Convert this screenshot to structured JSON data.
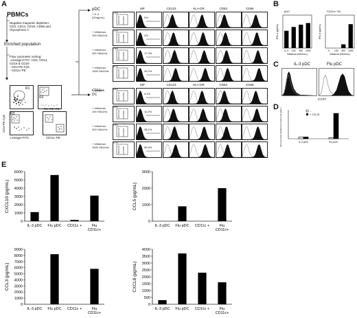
{
  "panel_labels": {
    "a": "A",
    "b": "B",
    "c": "C",
    "d": "D",
    "e": "E"
  },
  "panel_a": {
    "pbmcs": "PBMCs",
    "depletion_lines": [
      "Negative magnetic depletion:",
      "CD3, CD14, CD19, CD56 and",
      "Glycophorin A"
    ],
    "enriched": "Enriched population",
    "sorting_lines": [
      "Flow cytometer sorting:",
      "-Lineage-FITC: CD3, CD14,",
      "CD16 & CD20",
      "- CD4-PE-Cy5",
      "- CD11c-PE"
    ],
    "gates": {
      "r1": "R1",
      "r2": "R2",
      "r3": "R3",
      "r1r2r3": "R1+R2+R3"
    },
    "axis_labels": {
      "cd4": "CD4-PE-Cy5",
      "lineage": "Lineage-FITC",
      "cd11c": "CD11c-PE"
    },
    "pdc_label": "pDC",
    "cd11c_label": "CD11c+ DC",
    "col_headers": [
      "MP",
      "CD123",
      "HLA-DR",
      "CD83",
      "CD86"
    ],
    "pdc_rows": [
      {
        "cond": [
          "+ IL-3",
          "(20ng/mL)"
        ],
        "viab": "72%",
        "mp": "0%"
      },
      {
        "cond": [
          "+ Influenza",
          "100 HAU/mL"
        ],
        "viab": "71%",
        "mp": "4%"
      },
      {
        "cond": [
          "+ Influenza",
          "400 HAU/mL"
        ],
        "viab": "70%",
        "mp": "17.3%"
      },
      {
        "cond": [
          "+ Influenza",
          "1000 HAU/mL"
        ],
        "viab": "67%",
        "mp": "26.2%"
      }
    ],
    "dc_rows": [
      {
        "cond": [
          "+ medium"
        ],
        "viab": "45%",
        "mp": "0.1%"
      },
      {
        "cond": [
          "+ Influenza",
          "100 HAU/mL"
        ],
        "viab": "39%",
        "mp": "11.2%"
      },
      {
        "cond": [
          "+ Influenza",
          "400 HAU/mL"
        ],
        "viab": "18%",
        "mp": "38.1%"
      },
      {
        "cond": [
          "+ Influenza",
          "1000 HAU/mL"
        ],
        "viab": "17%",
        "mp": "55.9%"
      }
    ]
  },
  "panel_c": {
    "left": "IL-3 pDC",
    "right": "Flu pDC",
    "xlabel": "CCR7"
  },
  "panel_d_legend": [
    "--",
    "+ CCL19"
  ],
  "chart_data": [
    {
      "id": "b1",
      "type": "bar",
      "title": "pDC",
      "ylabel": "IFN-α (pg/mL)",
      "xlabel": "Influenza (HAU/mL)",
      "categories": [
        "IL-3",
        "100",
        "400",
        "1000"
      ],
      "values": [
        1050,
        1280,
        1420,
        1520
      ],
      "ylim": [
        0,
        2000
      ]
    },
    {
      "id": "b2",
      "type": "bar",
      "title": "CD11c+ DC",
      "ylabel": "IFN-α (pg/mL)",
      "xlabel": "Influenza (HAU/mL)",
      "categories": [
        "0",
        "100",
        "400",
        "1000"
      ],
      "values": [
        0,
        0,
        90,
        580
      ],
      "ylim": [
        0,
        800
      ]
    },
    {
      "id": "d",
      "type": "bar",
      "ylabel": "Cells in the lower chamber (% of cells in the upper chamber)",
      "categories": [
        "IL-3 pDC",
        "Flu pDC"
      ],
      "series": [
        {
          "name": "--",
          "values": [
            3,
            2
          ]
        },
        {
          "name": "+ CCL19",
          "values": [
            3,
            44
          ]
        }
      ],
      "ylim": [
        0,
        50
      ]
    },
    {
      "id": "e1",
      "type": "bar",
      "ylabel": "CXCL10 (pg/mL)",
      "categories": [
        "IL-3 pDC",
        "Flu pDC",
        "CD11c +",
        "Flu CD11c+"
      ],
      "values": [
        1100,
        5600,
        150,
        3100
      ],
      "ylim": [
        0,
        6000
      ],
      "ticks": [
        0,
        1000,
        2000,
        3000,
        4000,
        5000,
        6000
      ]
    },
    {
      "id": "e2",
      "type": "bar",
      "ylabel": "CCL5 (pg/mL)",
      "categories": [
        "IL-3 pDC",
        "Flu pDC",
        "CD11c +",
        "Flu CD11c+"
      ],
      "values": [
        0,
        900,
        0,
        2000
      ],
      "ylim": [
        0,
        3000
      ],
      "ticks": [
        0,
        1000,
        2000,
        3000
      ]
    },
    {
      "id": "e3",
      "type": "bar",
      "ylabel": "CCL3 (pg/mL)",
      "categories": [
        "IL-3 pDC",
        "Flu pDC",
        "CD11c +",
        "Flu CD11c+"
      ],
      "values": [
        0,
        8200,
        0,
        5800
      ],
      "ylim": [
        0,
        9000
      ],
      "ticks": [
        0,
        1000,
        2000,
        3000,
        4000,
        5000,
        6000,
        7000,
        8000,
        9000
      ]
    },
    {
      "id": "e4",
      "type": "bar",
      "ylabel": "CXCL8 (pg/mL)",
      "categories": [
        "IL-3 pDC",
        "Flu pDC",
        "CD11c +",
        "Flu CD11c+"
      ],
      "values": [
        300,
        3700,
        2300,
        1600
      ],
      "ylim": [
        0,
        4000
      ],
      "ticks": [
        0,
        500,
        1000,
        1500,
        2000,
        2500,
        3000,
        3500,
        4000
      ]
    }
  ]
}
